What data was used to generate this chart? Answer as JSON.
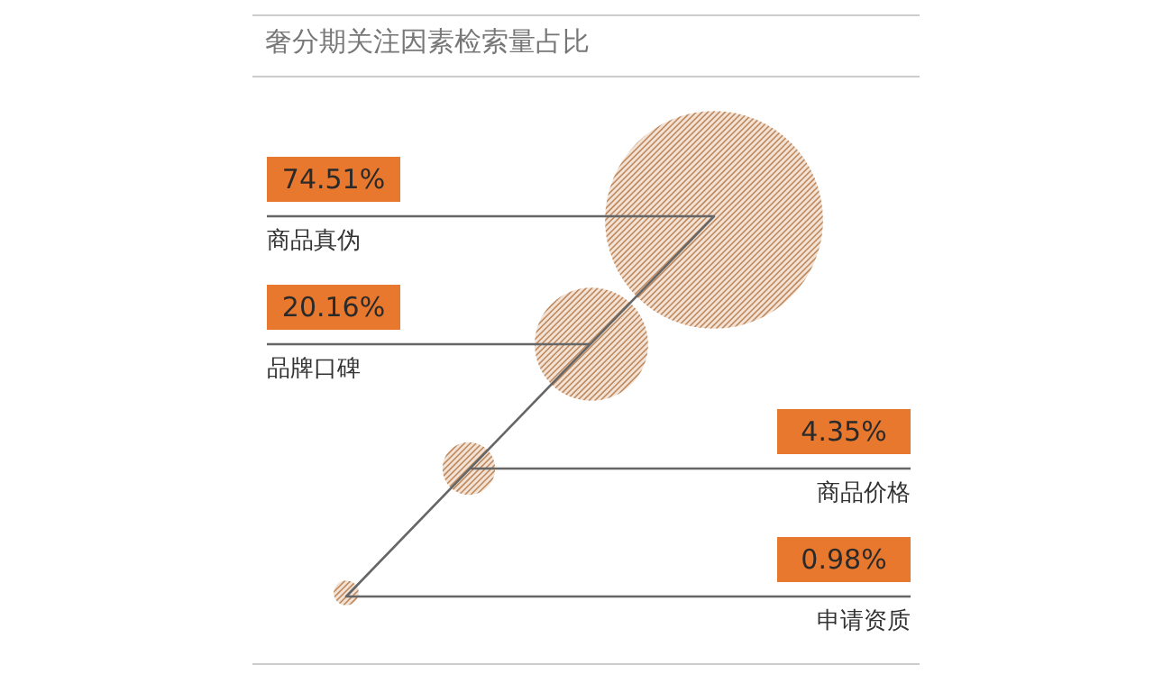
{
  "chart_data": {
    "type": "other",
    "title": "奢分期关注因素检索量占比",
    "categories": [
      "商品真伪",
      "品牌口碑",
      "商品价格",
      "申请资质"
    ],
    "values": [
      74.51,
      20.16,
      4.35,
      0.98
    ],
    "value_labels": [
      "74.51%",
      "20.16%",
      "4.35%",
      "0.98%"
    ],
    "color": "#e8782e"
  }
}
